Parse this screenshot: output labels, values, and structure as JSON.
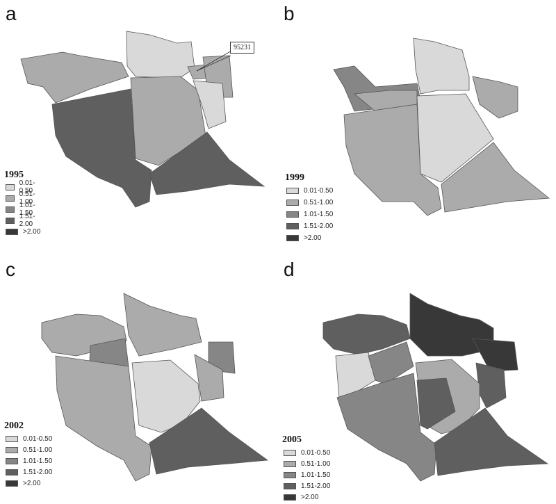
{
  "legend_classes": [
    {
      "label": "0.01-0.50",
      "color": "#d9d9d9"
    },
    {
      "label": "0.51-1.00",
      "color": "#ababab"
    },
    {
      "label": "1.01-1.50",
      "color": "#868686"
    },
    {
      "label": "1.51-2.00",
      "color": "#5f5f5f"
    },
    {
      "label": ">2.00",
      "color": "#383838"
    }
  ],
  "panels": [
    {
      "letter": "a",
      "year": "1995",
      "callout": "95231"
    },
    {
      "letter": "b",
      "year": "1999"
    },
    {
      "letter": "c",
      "year": "2002"
    },
    {
      "letter": "d",
      "year": "2005"
    }
  ]
}
